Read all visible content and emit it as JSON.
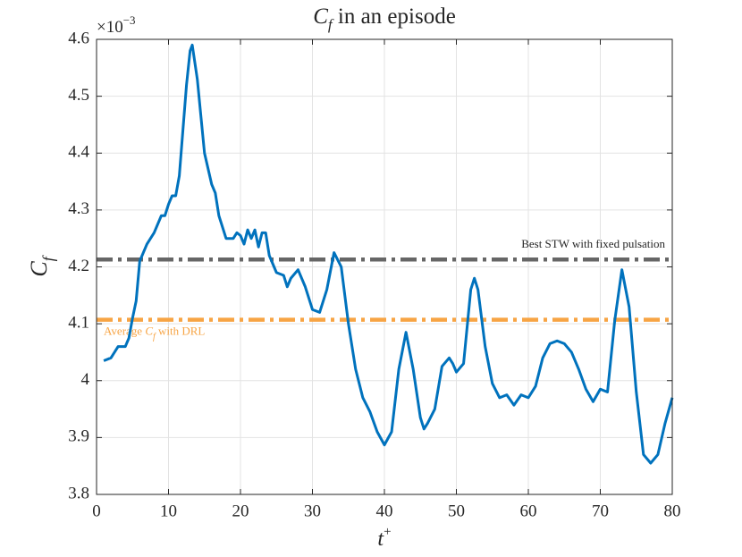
{
  "chart_data": {
    "type": "line",
    "title": [
      "C",
      "f",
      " in an episode"
    ],
    "xlabel": [
      "t",
      "+"
    ],
    "ylabel": [
      "C",
      "f"
    ],
    "y_multiplier": [
      "×10",
      "−3"
    ],
    "x": [
      1,
      2,
      3,
      4,
      4.5,
      5,
      5.5,
      6,
      7,
      8,
      9,
      9.5,
      10,
      10.5,
      11,
      11.5,
      12,
      12.5,
      13,
      13.3,
      14,
      15,
      16,
      16.5,
      17,
      18,
      19,
      19.5,
      20,
      20.5,
      21,
      21.5,
      22,
      22.5,
      23,
      23.5,
      24,
      25,
      26,
      26.5,
      27,
      28,
      29,
      30,
      31,
      32,
      33,
      34,
      35,
      36,
      37,
      38,
      39,
      40,
      41,
      42,
      43,
      44,
      45,
      45.5,
      46,
      47,
      48,
      49,
      49.5,
      50,
      51,
      52,
      52.5,
      53,
      54,
      55,
      56,
      57,
      58,
      59,
      60,
      61,
      62,
      63,
      64,
      65,
      66,
      67,
      68,
      69,
      70,
      71,
      72,
      73,
      74,
      75,
      76,
      77,
      78,
      79,
      80
    ],
    "series": [
      {
        "name": "Cf",
        "color": "#0072bd",
        "values": [
          4.035,
          4.04,
          4.06,
          4.06,
          4.075,
          4.11,
          4.14,
          4.21,
          4.24,
          4.26,
          4.29,
          4.29,
          4.31,
          4.325,
          4.325,
          4.36,
          4.44,
          4.52,
          4.58,
          4.59,
          4.53,
          4.4,
          4.345,
          4.33,
          4.29,
          4.25,
          4.25,
          4.26,
          4.255,
          4.24,
          4.265,
          4.25,
          4.265,
          4.235,
          4.26,
          4.26,
          4.22,
          4.19,
          4.185,
          4.165,
          4.18,
          4.195,
          4.165,
          4.125,
          4.12,
          4.16,
          4.225,
          4.2,
          4.1,
          4.02,
          3.97,
          3.945,
          3.91,
          3.887,
          3.91,
          4.02,
          4.085,
          4.02,
          3.935,
          3.915,
          3.925,
          3.95,
          4.025,
          4.04,
          4.03,
          4.015,
          4.03,
          4.16,
          4.18,
          4.16,
          4.06,
          3.995,
          3.97,
          3.975,
          3.957,
          3.975,
          3.97,
          3.99,
          4.04,
          4.065,
          4.07,
          4.065,
          4.05,
          4.02,
          3.985,
          3.963,
          3.985,
          3.98,
          4.105,
          4.195,
          4.13,
          3.98,
          3.87,
          3.855,
          3.87,
          3.925,
          3.97
        ]
      }
    ],
    "reference_lines": [
      {
        "label": [
          "Best STW with fixed pulsation"
        ],
        "value": 4.213,
        "color": "#666666",
        "label_side": "above-right"
      },
      {
        "label": [
          "Average ",
          "C",
          "f",
          " with DRL"
        ],
        "value": 4.107,
        "color": "#f7a444",
        "label_side": "below-left"
      }
    ],
    "xlim": [
      0,
      80
    ],
    "xticks": [
      0,
      10,
      20,
      30,
      40,
      50,
      60,
      70,
      80
    ],
    "ylim": [
      3.8,
      4.6
    ],
    "yticks": [
      3.8,
      3.9,
      4,
      4.1,
      4.2,
      4.3,
      4.4,
      4.5,
      4.6
    ],
    "grid": true
  }
}
